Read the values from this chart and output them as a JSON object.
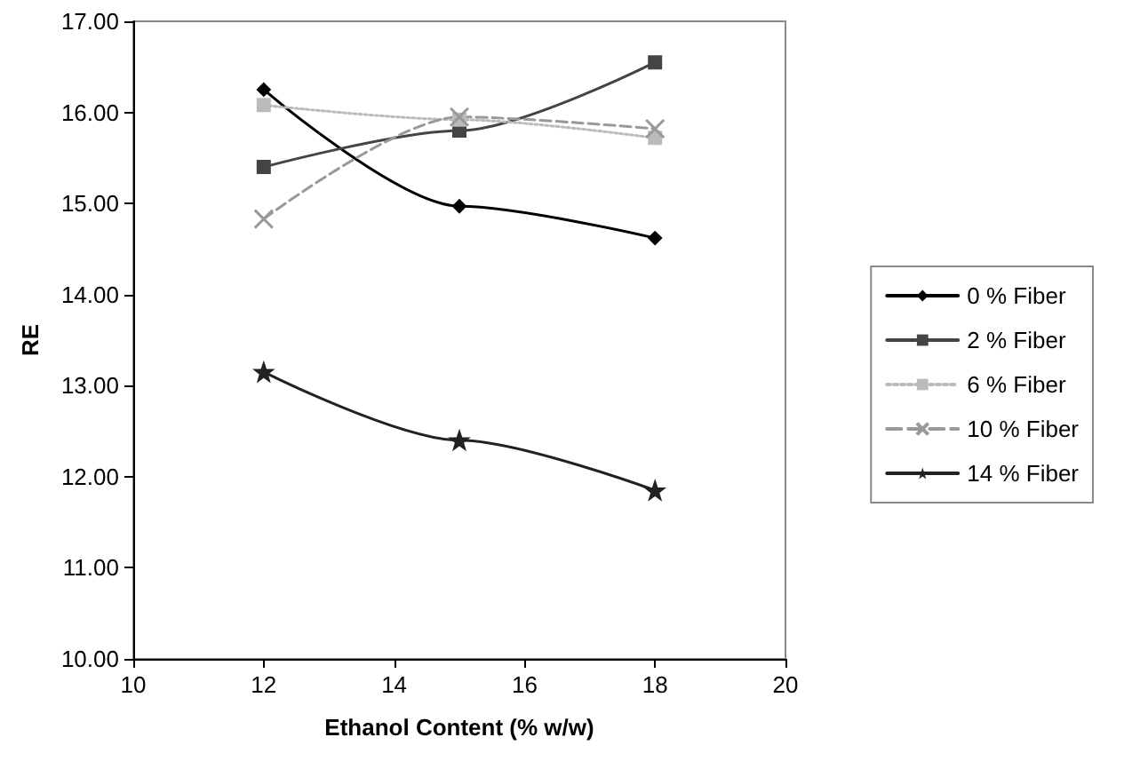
{
  "chart_data": {
    "type": "line",
    "xlabel": "Ethanol Content (% w/w)",
    "ylabel": "RE",
    "x": [
      12,
      15,
      18
    ],
    "series": [
      {
        "name": "0 % Fiber",
        "color": "#000000",
        "marker": "diamond",
        "line_style": "solid",
        "values": [
          16.25,
          14.97,
          14.62
        ]
      },
      {
        "name": "2 % Fiber",
        "color": "#444444",
        "marker": "square",
        "line_style": "solid",
        "values": [
          15.4,
          15.8,
          16.55
        ]
      },
      {
        "name": "6 % Fiber",
        "color": "#bbbbbb",
        "marker": "square",
        "line_style": "dotted",
        "values": [
          16.08,
          15.92,
          15.72
        ]
      },
      {
        "name": "10 % Fiber",
        "color": "#999999",
        "marker": "cross",
        "line_style": "dashed",
        "values": [
          14.83,
          15.95,
          15.82
        ]
      },
      {
        "name": "14 % Fiber",
        "color": "#222222",
        "marker": "star",
        "line_style": "solid",
        "values": [
          13.15,
          12.4,
          11.85
        ]
      }
    ],
    "xlim": [
      10,
      20
    ],
    "xticks": [
      10,
      12,
      14,
      16,
      18,
      20
    ],
    "ylim": [
      10,
      17
    ],
    "yticks": [
      {
        "value": 10,
        "label": "10.00"
      },
      {
        "value": 11,
        "label": "11.00"
      },
      {
        "value": 12,
        "label": "12.00"
      },
      {
        "value": 13,
        "label": "13.00"
      },
      {
        "value": 14,
        "label": "14.00"
      },
      {
        "value": 15,
        "label": "15.00"
      },
      {
        "value": 16,
        "label": "16.00"
      },
      {
        "value": 17,
        "label": "17.00"
      }
    ],
    "grid": false,
    "legend": "right"
  }
}
